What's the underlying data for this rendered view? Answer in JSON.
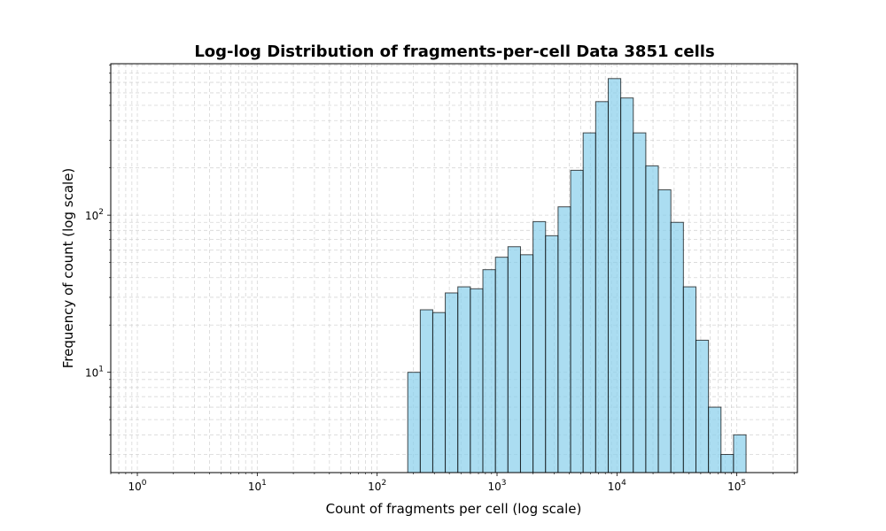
{
  "chart_data": {
    "type": "bar",
    "title": "Log-log Distribution of fragments-per-cell Data 3851 cells",
    "xlabel": "Count of fragments per cell (log scale)",
    "ylabel": "Frequency of count (log scale)",
    "xscale": "log",
    "yscale": "log",
    "xlim": [
      0.6,
      320000
    ],
    "ylim": [
      2.3,
      920
    ],
    "grid": true,
    "x_ticks": [
      {
        "base": "10",
        "exp": "0",
        "value": 1
      },
      {
        "base": "10",
        "exp": "1",
        "value": 10
      },
      {
        "base": "10",
        "exp": "2",
        "value": 100
      },
      {
        "base": "10",
        "exp": "3",
        "value": 1000
      },
      {
        "base": "10",
        "exp": "4",
        "value": 10000
      },
      {
        "base": "10",
        "exp": "5",
        "value": 100000
      }
    ],
    "y_ticks": [
      {
        "base": "10",
        "exp": "1",
        "value": 10
      },
      {
        "base": "10",
        "exp": "2",
        "value": 100
      }
    ],
    "bin_edges": [
      180,
      229,
      291,
      370,
      471,
      599,
      762,
      970,
      1233,
      1569,
      1996,
      2539,
      3230,
      4109,
      5227,
      6649,
      8458,
      10759,
      13687,
      17411,
      22148,
      28175,
      35841,
      45593,
      57998,
      73779,
      93853,
      119389,
      151874
    ],
    "values": [
      10,
      25,
      24,
      32,
      35,
      34,
      45,
      54,
      63,
      56,
      91,
      74,
      113,
      193,
      334,
      528,
      740,
      557,
      334,
      206,
      145,
      90,
      35,
      16,
      6,
      3,
      4,
      0
    ],
    "bar_color": "#87CEEB",
    "edge_color": "#000000"
  }
}
